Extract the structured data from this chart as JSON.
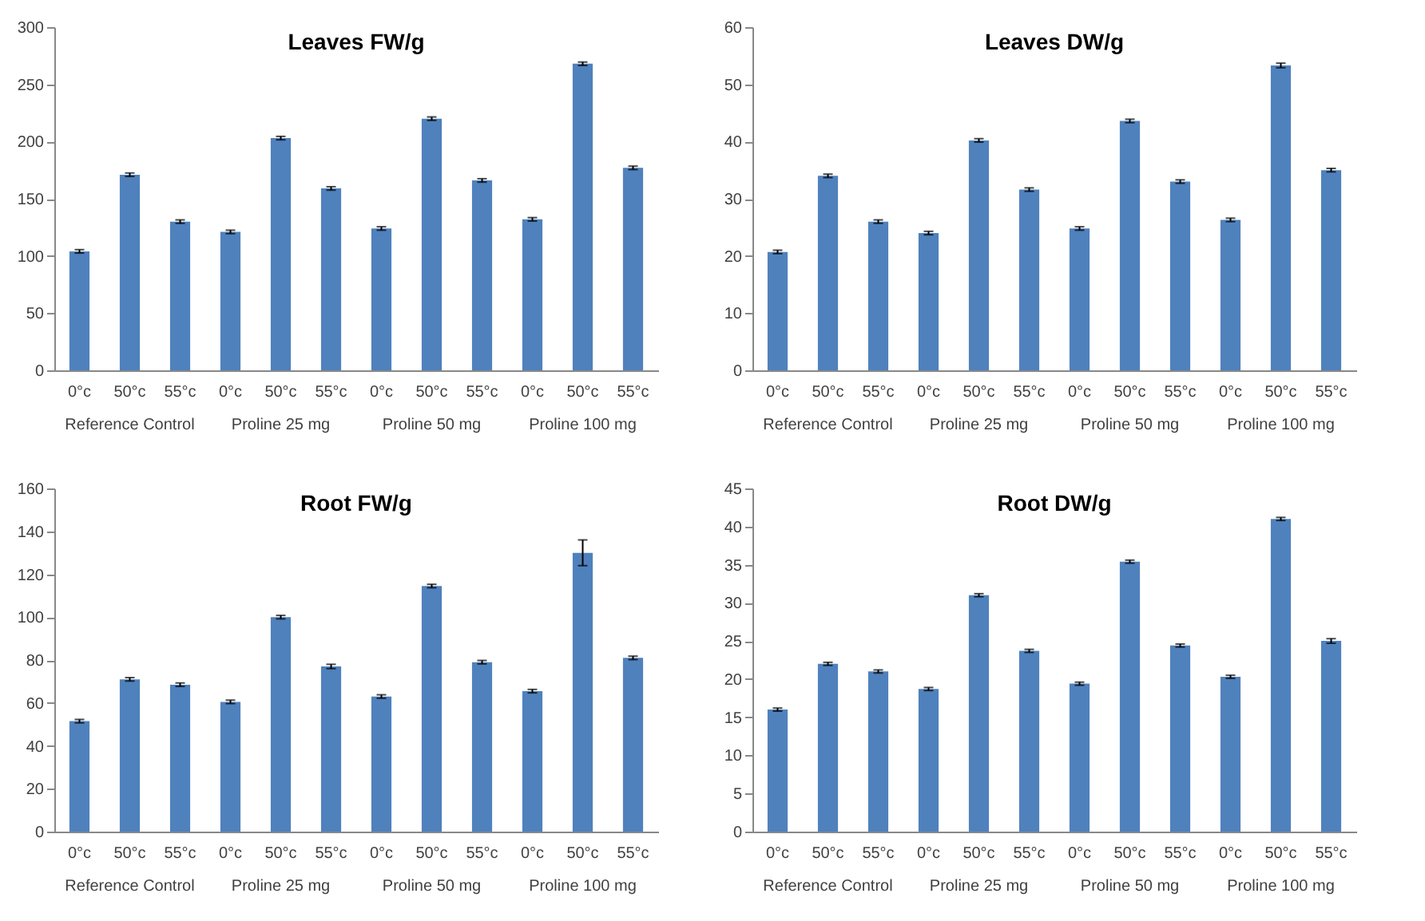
{
  "chart_data": [
    {
      "type": "bar",
      "title": "Leaves  FW/g",
      "categories": [
        "0°c",
        "50°c",
        "55°c",
        "0°c",
        "50°c",
        "55°c",
        "0°c",
        "50°c",
        "55°c",
        "0°c",
        "50°c",
        "55°c"
      ],
      "values": [
        104,
        171,
        130,
        121,
        203,
        159,
        124,
        220,
        166,
        132,
        268,
        177
      ],
      "errors": [
        1.5,
        1.5,
        1.5,
        1.5,
        1.5,
        1.5,
        1.5,
        1.5,
        1.5,
        1.5,
        1.5,
        1.5
      ],
      "color": "#4f81bd",
      "ylim": [
        0,
        300
      ],
      "yticks": [
        0,
        50,
        100,
        150,
        200,
        250,
        300
      ],
      "annotations": [
        "Reference Control",
        "Proline 25 mg",
        "Proline 50 mg",
        "Proline 100 mg"
      ]
    },
    {
      "type": "bar",
      "title": "Leaves DW/g",
      "categories": [
        "0°c",
        "50°c",
        "55°c",
        "0°c",
        "50°c",
        "55°c",
        "0°c",
        "50°c",
        "55°c",
        "0°c",
        "50°c",
        "55°c"
      ],
      "values": [
        20.7,
        34,
        26,
        24,
        40.2,
        31.6,
        24.8,
        43.6,
        33,
        26.3,
        53.3,
        35
      ],
      "errors": [
        0.3,
        0.3,
        0.3,
        0.3,
        0.3,
        0.3,
        0.3,
        0.3,
        0.3,
        0.3,
        0.4,
        0.3
      ],
      "color": "#4f81bd",
      "ylim": [
        0,
        60
      ],
      "yticks": [
        0,
        10,
        20,
        30,
        40,
        50,
        60
      ],
      "annotations": [
        "Reference Control",
        "Proline 25 mg",
        "Proline 50 mg",
        "Proline 100 mg"
      ]
    },
    {
      "type": "bar",
      "title": "Root FW/g",
      "categories": [
        "0°c",
        "50°c",
        "55°c",
        "0°c",
        "50°c",
        "55°c",
        "0°c",
        "50°c",
        "55°c",
        "0°c",
        "50°c",
        "55°c"
      ],
      "values": [
        51.5,
        71,
        68.5,
        60.5,
        100,
        77,
        63,
        114.5,
        79,
        65.5,
        130,
        81
      ],
      "errors": [
        0.8,
        0.8,
        0.8,
        0.8,
        0.8,
        1,
        0.8,
        0.8,
        0.8,
        0.8,
        6,
        0.8
      ],
      "color": "#4f81bd",
      "ylim": [
        0,
        160
      ],
      "yticks": [
        0,
        20,
        40,
        60,
        80,
        100,
        120,
        140,
        160
      ],
      "annotations": [
        "Reference Control",
        "Proline 25 mg",
        "Proline 50 mg",
        "Proline 100 mg"
      ]
    },
    {
      "type": "bar",
      "title": "Root DW/g",
      "categories": [
        "0°c",
        "50°c",
        "55°c",
        "0°c",
        "50°c",
        "55°c",
        "0°c",
        "50°c",
        "55°c",
        "0°c",
        "50°c",
        "55°c"
      ],
      "values": [
        16,
        22,
        21,
        18.7,
        31,
        23.7,
        19.4,
        35.4,
        24.4,
        20.3,
        41,
        25
      ],
      "errors": [
        0.2,
        0.2,
        0.2,
        0.2,
        0.2,
        0.2,
        0.2,
        0.2,
        0.2,
        0.2,
        0.2,
        0.3
      ],
      "color": "#4f81bd",
      "ylim": [
        0,
        45
      ],
      "yticks": [
        0,
        5,
        10,
        15,
        20,
        25,
        30,
        35,
        40,
        45
      ],
      "annotations": [
        "Reference Control",
        "Proline 25 mg",
        "Proline 50 mg",
        "Proline 100 mg"
      ]
    }
  ]
}
